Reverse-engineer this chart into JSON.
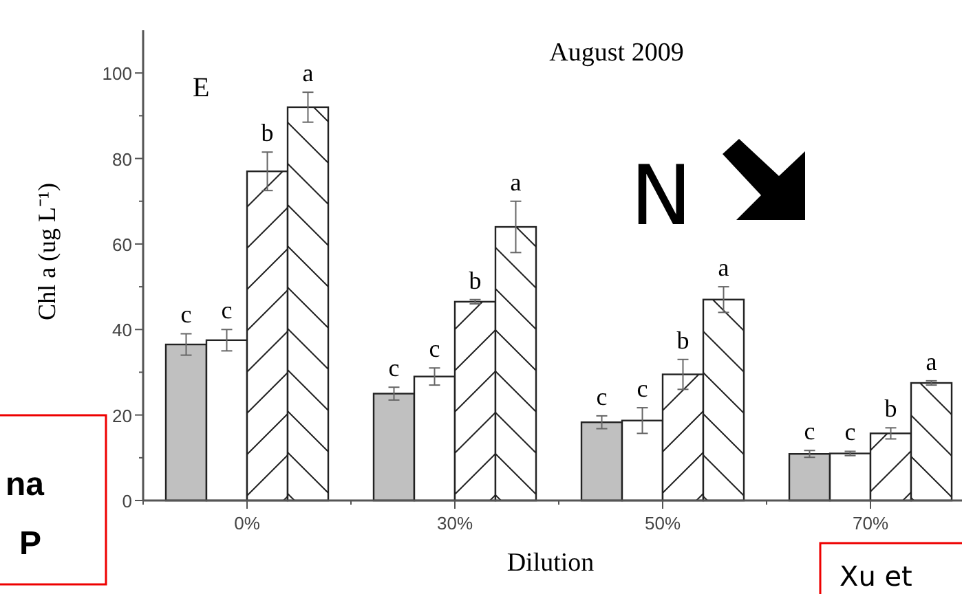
{
  "chart_data": {
    "type": "bar",
    "title": "August 2009",
    "xlabel": "Dilution",
    "ylabel": "Chl a (ug L⁻¹)",
    "categories": [
      "0%",
      "30%",
      "50%",
      "70%"
    ],
    "series": [
      {
        "color": "#c0c0c0",
        "values": [
          36.5,
          25,
          18.3,
          10.9
        ],
        "errors": [
          2.5,
          1.5,
          1.5,
          0.8
        ],
        "value_labels": [
          "c",
          "c",
          "c",
          "c"
        ]
      },
      {
        "color": "#ffffff",
        "values": [
          37.5,
          29,
          18.7,
          11
        ],
        "errors": [
          2.5,
          2,
          3,
          0.5
        ],
        "value_labels": [
          "c",
          "c",
          "c",
          "c"
        ]
      },
      {
        "color": "#222222",
        "values": [
          77,
          46.5,
          29.5,
          15.7
        ],
        "errors": [
          4.5,
          0.5,
          3.5,
          1.3
        ],
        "value_labels": [
          "b",
          "b",
          "b",
          "b"
        ]
      },
      {
        "color": "#222222",
        "values": [
          92,
          64,
          47,
          27.5
        ],
        "errors": [
          3.5,
          6,
          3,
          0.5
        ],
        "value_labels": [
          "a",
          "a",
          "a",
          "a"
        ]
      }
    ],
    "ylim": [
      0,
      110
    ],
    "yticks": [
      0,
      {
        "value": 10,
        "label": null
      },
      20,
      {
        "value": 30,
        "label": null
      },
      40,
      {
        "value": 50,
        "label": null
      },
      60,
      {
        "value": 70,
        "label": null
      },
      80,
      {
        "value": 90,
        "label": null
      },
      100
    ],
    "annotations": [
      "E",
      "N",
      "na",
      "P",
      "Xu et"
    ]
  }
}
